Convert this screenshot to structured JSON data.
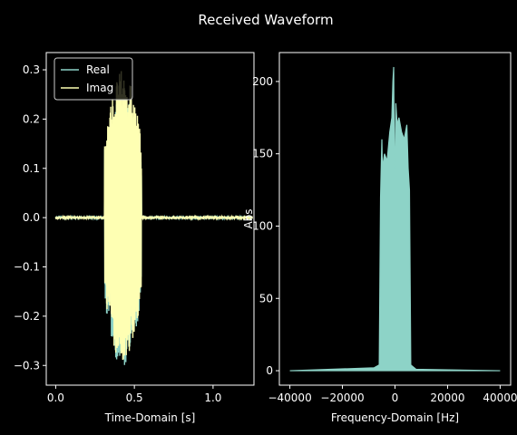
{
  "chart_data": [
    {
      "type": "line",
      "suptitle": "Received Waveform",
      "xlabel": "Time-Domain [s]",
      "ylabel": "",
      "xlim": [
        -0.06,
        1.26
      ],
      "ylim": [
        -0.34,
        0.335
      ],
      "xticks": [
        0.0,
        0.5,
        1.0
      ],
      "xtick_labels": [
        "0.0",
        "0.5",
        "1.0"
      ],
      "yticks": [
        -0.3,
        -0.2,
        -0.1,
        0.0,
        0.1,
        0.2,
        0.3
      ],
      "ytick_labels": [
        "−0.3",
        "−0.2",
        "−0.1",
        "0.0",
        "0.1",
        "0.2",
        "0.3"
      ],
      "grid": false,
      "legend": "upper-left",
      "burst_window": [
        0.31,
        0.545
      ],
      "series": [
        {
          "name": "Real",
          "color": "#8dd3c7",
          "peak_max": 0.25,
          "peak_min": -0.31,
          "baseline": 0.0
        },
        {
          "name": "Imag",
          "color": "#feffb3",
          "peak_max": 0.3,
          "peak_min": -0.3,
          "baseline": 0.0
        }
      ]
    },
    {
      "type": "line",
      "xlabel": "Frequency-Domain [Hz]",
      "ylabel": "Abs",
      "xlim": [
        -44000,
        44000
      ],
      "ylim": [
        -10,
        220
      ],
      "xticks": [
        -40000,
        -20000,
        0,
        20000,
        40000
      ],
      "xtick_labels": [
        "−40000",
        "−20000",
        "0",
        "20000",
        "40000"
      ],
      "yticks": [
        0,
        50,
        100,
        150,
        200
      ],
      "ytick_labels": [
        "0",
        "50",
        "100",
        "150",
        "200"
      ],
      "grid": false,
      "series": [
        {
          "color": "#8dd3c7",
          "x": [
            -40000,
            -8000,
            -6000,
            -5500,
            -5000,
            -4800,
            -4000,
            -3000,
            -2000,
            -1200,
            -800,
            -500,
            -300,
            0,
            300,
            800,
            1500,
            2500,
            3500,
            4500,
            5000,
            5500,
            6000,
            8000,
            40000
          ],
          "y": [
            0,
            2,
            4,
            120,
            160,
            140,
            150,
            145,
            165,
            175,
            200,
            210,
            150,
            140,
            185,
            170,
            175,
            165,
            160,
            170,
            140,
            125,
            4,
            1,
            0
          ]
        }
      ]
    }
  ]
}
